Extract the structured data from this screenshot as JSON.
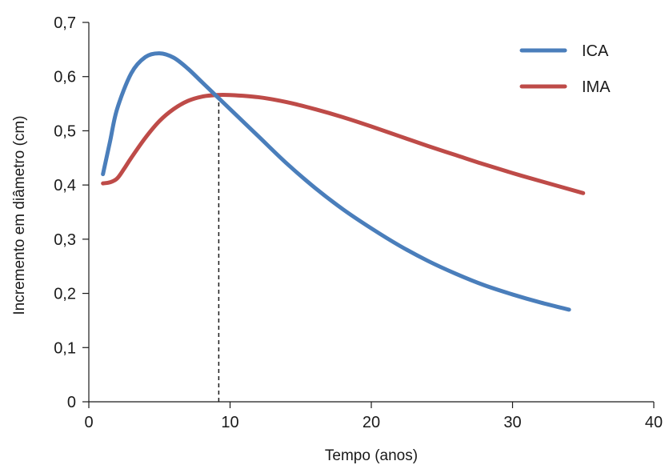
{
  "chart_data": {
    "type": "line",
    "xlabel": "Tempo (anos)",
    "ylabel": "Incremento em diâmetro (cm)",
    "xlim": [
      0,
      40
    ],
    "ylim": [
      0,
      0.7
    ],
    "x_ticks": [
      0,
      10,
      20,
      30,
      40
    ],
    "x_tick_labels": [
      "0",
      "10",
      "20",
      "30",
      "40"
    ],
    "y_ticks": [
      0,
      0.1,
      0.2,
      0.3,
      0.4,
      0.5,
      0.6,
      0.7
    ],
    "y_tick_labels": [
      "0",
      "0,1",
      "0,2",
      "0,3",
      "0,4",
      "0,5",
      "0,6",
      "0,7"
    ],
    "grid": false,
    "legend_position": "top-right",
    "series": [
      {
        "name": "ICA",
        "color": "#4a7ebb",
        "x": [
          1,
          1.5,
          2,
          3,
          4,
          5,
          6,
          7,
          8,
          9,
          10,
          12,
          14,
          16,
          18,
          20,
          22,
          24,
          26,
          28,
          30,
          32,
          34
        ],
        "y": [
          0.42,
          0.48,
          0.54,
          0.606,
          0.636,
          0.643,
          0.635,
          0.615,
          0.59,
          0.565,
          0.54,
          0.49,
          0.44,
          0.395,
          0.355,
          0.32,
          0.288,
          0.26,
          0.236,
          0.215,
          0.198,
          0.183,
          0.17
        ]
      },
      {
        "name": "IMA",
        "color": "#be4b48",
        "x": [
          1,
          1.5,
          2,
          2.5,
          3,
          4,
          5,
          6,
          7,
          8,
          9,
          10,
          12,
          14,
          16,
          18,
          20,
          22,
          24,
          26,
          28,
          30,
          32,
          35
        ],
        "y": [
          0.403,
          0.405,
          0.412,
          0.43,
          0.45,
          0.487,
          0.518,
          0.54,
          0.555,
          0.563,
          0.566,
          0.566,
          0.562,
          0.553,
          0.54,
          0.525,
          0.508,
          0.49,
          0.472,
          0.455,
          0.438,
          0.422,
          0.407,
          0.385
        ]
      }
    ],
    "annotations": [
      {
        "type": "vertical-dashed-line",
        "x": 9.2,
        "y_from": 0,
        "y_to": 0.566
      }
    ]
  }
}
